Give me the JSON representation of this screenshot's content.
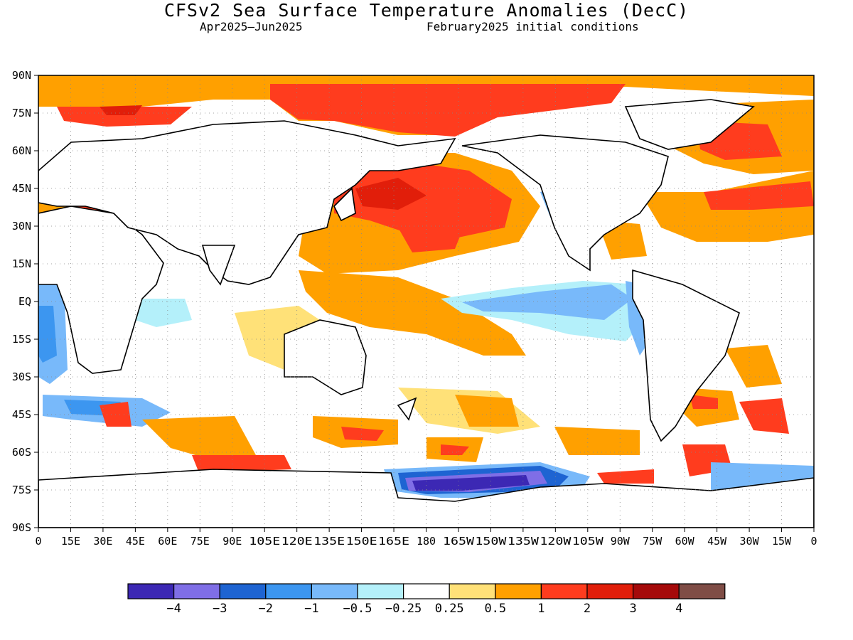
{
  "header": {
    "title": "CFSv2 Sea Surface Temperature Anomalies (DecC)",
    "period": "Apr2025—Jun2025",
    "init": "February2025 initial conditions"
  },
  "axes": {
    "lat_ticks": [
      "90N",
      "75N",
      "60N",
      "45N",
      "30N",
      "15N",
      "EQ",
      "15S",
      "30S",
      "45S",
      "60S",
      "75S",
      "90S"
    ],
    "lon_ticks": [
      "0",
      "15E",
      "30E",
      "45E",
      "60E",
      "75E",
      "90E",
      "105E",
      "120E",
      "135E",
      "150E",
      "165E",
      "180",
      "165W",
      "150W",
      "135W",
      "120W",
      "105W",
      "90W",
      "75W",
      "60W",
      "45W",
      "30W",
      "15W",
      "0"
    ]
  },
  "legend": {
    "colors": [
      "#3c28b4",
      "#7f6ee6",
      "#1e64d2",
      "#3c96f0",
      "#78b9fa",
      "#b4f0fa",
      "#ffffff",
      "#ffe178",
      "#ffa000",
      "#ff3c1e",
      "#e11e0a",
      "#a50a0a",
      "#7f4d46"
    ],
    "labels": [
      "−4",
      "−3",
      "−2",
      "−1",
      "−0.5",
      "−0.25",
      "0.25",
      "0.5",
      "1",
      "2",
      "3",
      "4"
    ]
  }
}
